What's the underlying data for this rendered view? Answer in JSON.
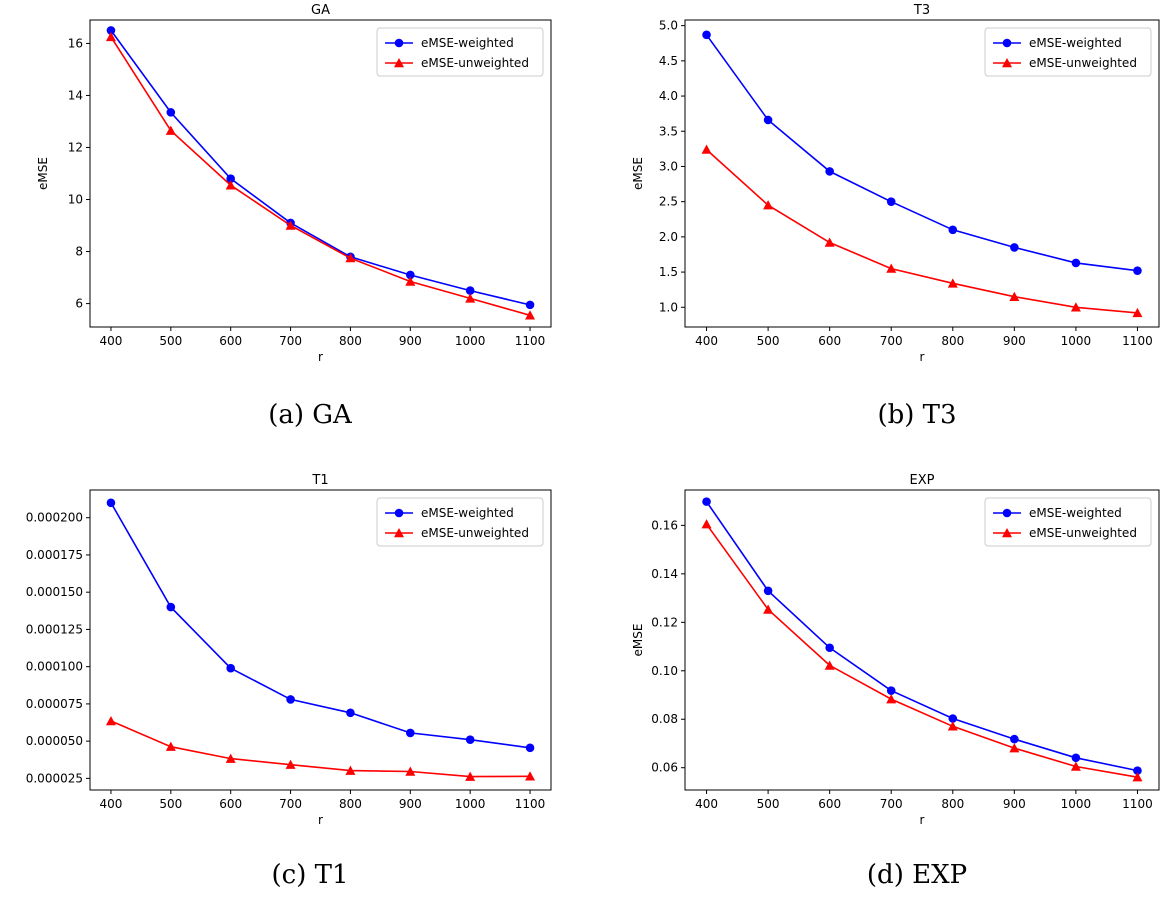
{
  "chart_data": [
    {
      "type": "line",
      "title": "GA",
      "xlabel": "r",
      "ylabel": "eMSE",
      "x": [
        400,
        500,
        600,
        700,
        800,
        900,
        1000,
        1100
      ],
      "xlim": [
        365,
        1135
      ],
      "ylim": [
        5.1,
        16.9
      ],
      "yticks": [
        6,
        8,
        10,
        12,
        14,
        16
      ],
      "ytick_labels": [
        "6",
        "8",
        "10",
        "12",
        "14",
        "16"
      ],
      "legend_loc": "top-right",
      "series": [
        {
          "name": "eMSE-weighted",
          "color": "#0000ff",
          "marker": "circle",
          "values": [
            16.5,
            13.35,
            10.8,
            9.1,
            7.8,
            7.1,
            6.5,
            5.95
          ]
        },
        {
          "name": "eMSE-unweighted",
          "color": "#ff0000",
          "marker": "triangle",
          "values": [
            16.25,
            12.65,
            10.55,
            9.0,
            7.75,
            6.85,
            6.2,
            5.55
          ]
        }
      ],
      "caption": "(a) GA"
    },
    {
      "type": "line",
      "title": "T3",
      "xlabel": "r",
      "ylabel": "eMSE",
      "x": [
        400,
        500,
        600,
        700,
        800,
        900,
        1000,
        1100
      ],
      "xlim": [
        365,
        1135
      ],
      "ylim": [
        0.72,
        5.08
      ],
      "yticks": [
        1.0,
        1.5,
        2.0,
        2.5,
        3.0,
        3.5,
        4.0,
        4.5,
        5.0
      ],
      "ytick_labels": [
        "1.0",
        "1.5",
        "2.0",
        "2.5",
        "3.0",
        "3.5",
        "4.0",
        "4.5",
        "5.0"
      ],
      "legend_loc": "top-right",
      "series": [
        {
          "name": "eMSE-weighted",
          "color": "#0000ff",
          "marker": "circle",
          "values": [
            4.87,
            3.66,
            2.93,
            2.5,
            2.1,
            1.85,
            1.63,
            1.52
          ]
        },
        {
          "name": "eMSE-unweighted",
          "color": "#ff0000",
          "marker": "triangle",
          "values": [
            3.24,
            2.45,
            1.92,
            1.55,
            1.34,
            1.15,
            1.0,
            0.92
          ]
        }
      ],
      "caption": "(b) T3"
    },
    {
      "type": "line",
      "title": "T1",
      "xlabel": "r",
      "ylabel": "",
      "x": [
        400,
        500,
        600,
        700,
        800,
        900,
        1000,
        1100
      ],
      "xlim": [
        365,
        1135
      ],
      "ylim": [
        1.72e-05,
        0.0002186
      ],
      "yticks": [
        2.5e-05,
        5e-05,
        7.5e-05,
        0.0001,
        0.000125,
        0.00015,
        0.000175,
        0.0002
      ],
      "ytick_labels": [
        "0.000025",
        "0.000050",
        "0.000075",
        "0.000100",
        "0.000125",
        "0.000150",
        "0.000175",
        "0.000200"
      ],
      "legend_loc": "top-right",
      "series": [
        {
          "name": "eMSE-weighted",
          "color": "#0000ff",
          "marker": "circle",
          "values": [
            0.00021,
            0.00014,
            9.9e-05,
            7.8e-05,
            6.9e-05,
            5.55e-05,
            5.1e-05,
            4.55e-05
          ]
        },
        {
          "name": "eMSE-unweighted",
          "color": "#ff0000",
          "marker": "triangle",
          "values": [
            6.35e-05,
            4.63e-05,
            3.83e-05,
            3.42e-05,
            3.02e-05,
            2.96e-05,
            2.62e-05,
            2.64e-05
          ]
        }
      ],
      "caption": "(c) T1"
    },
    {
      "type": "line",
      "title": "EXP",
      "xlabel": "r",
      "ylabel": "eMSE",
      "x": [
        400,
        500,
        600,
        700,
        800,
        900,
        1000,
        1100
      ],
      "xlim": [
        365,
        1135
      ],
      "ylim": [
        0.0508,
        0.1746
      ],
      "yticks": [
        0.06,
        0.08,
        0.1,
        0.12,
        0.14,
        0.16
      ],
      "ytick_labels": [
        "0.06",
        "0.08",
        "0.10",
        "0.12",
        "0.14",
        "0.16"
      ],
      "legend_loc": "top-right",
      "series": [
        {
          "name": "eMSE-weighted",
          "color": "#0000ff",
          "marker": "circle",
          "values": [
            0.1698,
            0.133,
            0.1095,
            0.0918,
            0.0803,
            0.0718,
            0.0641,
            0.0588
          ]
        },
        {
          "name": "eMSE-unweighted",
          "color": "#ff0000",
          "marker": "triangle",
          "values": [
            0.1605,
            0.1253,
            0.1022,
            0.0883,
            0.0771,
            0.0681,
            0.0605,
            0.0561
          ]
        }
      ],
      "caption": "(d) EXP"
    }
  ]
}
